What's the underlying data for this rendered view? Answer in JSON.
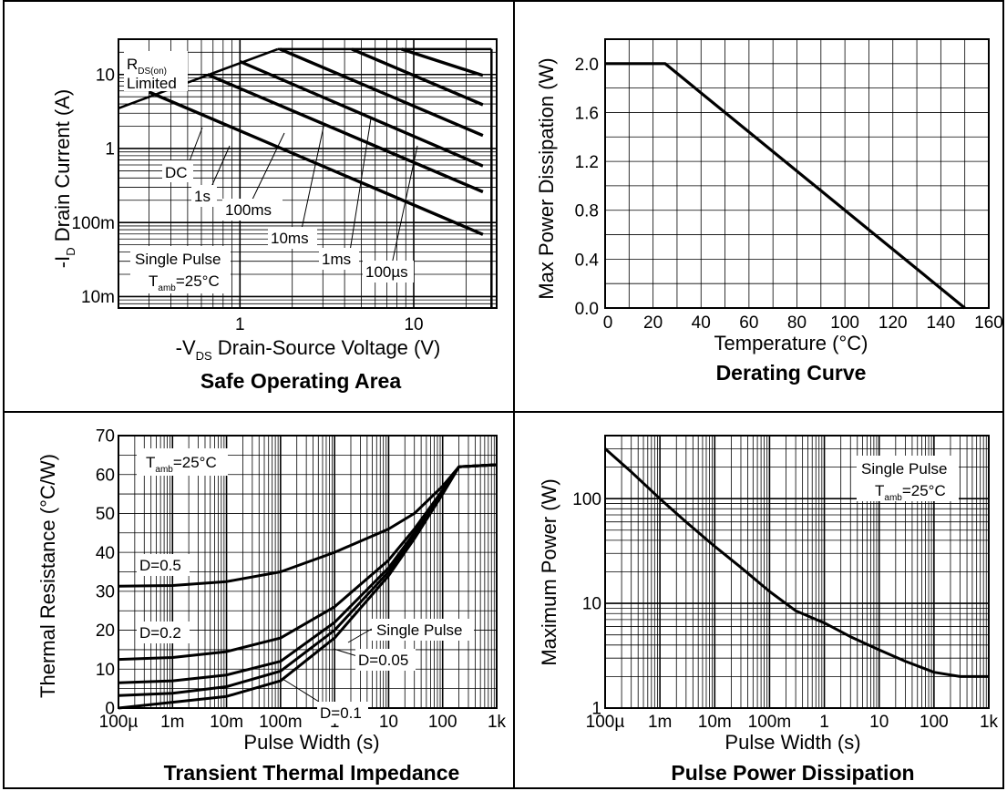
{
  "chart_data": [
    {
      "type": "line",
      "id": "soa",
      "title": "Safe Operating Area",
      "xlabel": "-V_DS  Drain-Source Voltage (V)",
      "ylabel": "-I_D  Drain Current (A)",
      "xscale": "log",
      "yscale": "log",
      "xlim": [
        0.2,
        30
      ],
      "ylim": [
        0.007,
        30
      ],
      "xticks": [
        {
          "v": 1,
          "label": "1"
        },
        {
          "v": 10,
          "label": "10"
        }
      ],
      "yticks": [
        {
          "v": 10,
          "label": "10"
        },
        {
          "v": 1,
          "label": "1"
        },
        {
          "v": 0.1,
          "label": "100m"
        },
        {
          "v": 0.01,
          "label": "10m"
        }
      ],
      "grid": true,
      "series": [
        {
          "name": "DC",
          "points": [
            [
              0.3,
              5.8
            ],
            [
              25,
              0.069
            ]
          ]
        },
        {
          "name": "1s",
          "points": [
            [
              0.65,
              10
            ],
            [
              25,
              0.26
            ]
          ]
        },
        {
          "name": "100ms",
          "points": [
            [
              1,
              15
            ],
            [
              25,
              0.58
            ]
          ]
        },
        {
          "name": "10ms",
          "points": [
            [
              1.7,
              22
            ],
            [
              25,
              1.5
            ]
          ]
        },
        {
          "name": "1ms",
          "points": [
            [
              4.4,
              22
            ],
            [
              25,
              3.9
            ]
          ]
        },
        {
          "name": "100µs",
          "points": [
            [
              8.5,
              22
            ],
            [
              25,
              9.7
            ]
          ]
        }
      ],
      "limit_lines": [
        {
          "name": "R_DS(on) Limited",
          "points": [
            [
              0.2,
              3.5
            ],
            [
              1.65,
              22
            ]
          ]
        },
        {
          "name": "current limit",
          "points": [
            [
              1.65,
              22
            ],
            [
              28,
              22
            ]
          ]
        },
        {
          "name": "voltage limit",
          "points": [
            [
              28,
              22
            ],
            [
              28,
              0.007
            ]
          ]
        }
      ],
      "annotations": {
        "rds_main": "R",
        "rds_sub": "DS(on)",
        "rds_limited": "Limited",
        "dc": "DC",
        "t1s": "1s",
        "t100ms": "100ms",
        "t10ms": "10ms",
        "t1ms": "1ms",
        "t100us": "100µs",
        "single_pulse": "Single Pulse",
        "tamb_main": "T",
        "tamb_sub": "amb",
        "tamb_val": "=25°C"
      },
      "xlabel_parts": {
        "pre": "-V",
        "sub": "DS",
        "post": "  Drain-Source Voltage (V)"
      },
      "ylabel_parts": {
        "pre": "-I",
        "sub": "D",
        "post": "  Drain Current (A)"
      }
    },
    {
      "type": "line",
      "id": "derating",
      "title": "Derating Curve",
      "xlabel": "Temperature (°C)",
      "ylabel": "Max Power Dissipation (W)",
      "xscale": "linear",
      "yscale": "linear",
      "xlim": [
        0,
        160
      ],
      "ylim": [
        0,
        2.2
      ],
      "xticks": [
        {
          "v": 0,
          "label": "0"
        },
        {
          "v": 20,
          "label": "20"
        },
        {
          "v": 40,
          "label": "40"
        },
        {
          "v": 60,
          "label": "60"
        },
        {
          "v": 80,
          "label": "80"
        },
        {
          "v": 100,
          "label": "100"
        },
        {
          "v": 120,
          "label": "120"
        },
        {
          "v": 140,
          "label": "140"
        },
        {
          "v": 160,
          "label": "160"
        }
      ],
      "yticks": [
        {
          "v": 0.0,
          "label": "0.0"
        },
        {
          "v": 0.4,
          "label": "0.4"
        },
        {
          "v": 0.8,
          "label": "0.8"
        },
        {
          "v": 1.2,
          "label": "1.2"
        },
        {
          "v": 1.6,
          "label": "1.6"
        },
        {
          "v": 2.0,
          "label": "2.0"
        }
      ],
      "grid": true,
      "series": [
        {
          "points": [
            [
              0,
              2.0
            ],
            [
              25,
              2.0
            ],
            [
              150,
              0.0
            ]
          ]
        }
      ]
    },
    {
      "type": "line",
      "id": "transient",
      "title": "Transient Thermal Impedance",
      "xlabel": "Pulse Width (s)",
      "ylabel": "Thermal Resistance (°C/W)",
      "xscale": "log",
      "yscale": "linear",
      "xlim": [
        0.0001,
        1000
      ],
      "ylim": [
        0,
        70
      ],
      "xticks": [
        {
          "v": 0.0001,
          "label": "100µ"
        },
        {
          "v": 0.001,
          "label": "1m"
        },
        {
          "v": 0.01,
          "label": "10m"
        },
        {
          "v": 0.1,
          "label": "100m"
        },
        {
          "v": 1,
          "label": "1"
        },
        {
          "v": 10,
          "label": "10"
        },
        {
          "v": 100,
          "label": "100"
        },
        {
          "v": 1000,
          "label": "1k"
        }
      ],
      "yticks": [
        {
          "v": 0,
          "label": "0"
        },
        {
          "v": 10,
          "label": "10"
        },
        {
          "v": 20,
          "label": "20"
        },
        {
          "v": 30,
          "label": "30"
        },
        {
          "v": 40,
          "label": "40"
        },
        {
          "v": 50,
          "label": "50"
        },
        {
          "v": 60,
          "label": "60"
        },
        {
          "v": 70,
          "label": "70"
        }
      ],
      "grid": true,
      "series": [
        {
          "name": "D=0.5",
          "points": [
            [
              0.0001,
              31.3
            ],
            [
              0.001,
              31.5
            ],
            [
              0.01,
              32.5
            ],
            [
              0.1,
              35
            ],
            [
              1,
              40
            ],
            [
              10,
              46
            ],
            [
              30,
              50
            ],
            [
              100,
              57
            ],
            [
              200,
              62
            ],
            [
              1000,
              62.5
            ]
          ]
        },
        {
          "name": "D=0.2",
          "points": [
            [
              0.0001,
              12.5
            ],
            [
              0.001,
              13
            ],
            [
              0.01,
              14.5
            ],
            [
              0.1,
              18
            ],
            [
              1,
              26
            ],
            [
              10,
              38
            ],
            [
              30,
              46
            ],
            [
              100,
              56
            ],
            [
              200,
              62
            ],
            [
              1000,
              62.5
            ]
          ]
        },
        {
          "name": "D=0.1",
          "points": [
            [
              0.0001,
              6.5
            ],
            [
              0.001,
              7
            ],
            [
              0.01,
              8.5
            ],
            [
              0.1,
              12
            ],
            [
              1,
              22
            ],
            [
              10,
              36
            ],
            [
              30,
              45
            ],
            [
              100,
              55.5
            ],
            [
              200,
              62
            ],
            [
              1000,
              62.5
            ]
          ]
        },
        {
          "name": "D=0.05",
          "points": [
            [
              0.0001,
              3.2
            ],
            [
              0.001,
              3.8
            ],
            [
              0.01,
              5.5
            ],
            [
              0.1,
              9.5
            ],
            [
              1,
              20
            ],
            [
              10,
              35
            ],
            [
              30,
              44
            ],
            [
              100,
              55
            ],
            [
              200,
              62
            ],
            [
              1000,
              62.5
            ]
          ]
        },
        {
          "name": "Single Pulse",
          "points": [
            [
              0.0001,
              0
            ],
            [
              0.001,
              1.5
            ],
            [
              0.01,
              3
            ],
            [
              0.1,
              7
            ],
            [
              1,
              18
            ],
            [
              10,
              34
            ],
            [
              30,
              43.5
            ],
            [
              100,
              55
            ],
            [
              200,
              62
            ],
            [
              1000,
              62.5
            ]
          ]
        }
      ],
      "annotations": {
        "tamb_main": "T",
        "tamb_sub": "amb",
        "tamb_val": "=25°C",
        "d05": "D=0.5",
        "d02": "D=0.2",
        "d01": "D=0.1",
        "d005": "D=0.05",
        "single_pulse": "Single Pulse"
      }
    },
    {
      "type": "line",
      "id": "pulsepower",
      "title": "Pulse Power Dissipation",
      "xlabel": "Pulse Width (s)",
      "ylabel": "Maximum Power (W)",
      "xscale": "log",
      "yscale": "log",
      "xlim": [
        0.0001,
        1000
      ],
      "ylim": [
        1,
        400
      ],
      "xticks": [
        {
          "v": 0.0001,
          "label": "100µ"
        },
        {
          "v": 0.001,
          "label": "1m"
        },
        {
          "v": 0.01,
          "label": "10m"
        },
        {
          "v": 0.1,
          "label": "100m"
        },
        {
          "v": 1,
          "label": "1"
        },
        {
          "v": 10,
          "label": "10"
        },
        {
          "v": 100,
          "label": "100"
        },
        {
          "v": 1000,
          "label": "1k"
        }
      ],
      "yticks": [
        {
          "v": 1,
          "label": "1"
        },
        {
          "v": 10,
          "label": "10"
        },
        {
          "v": 100,
          "label": "100"
        }
      ],
      "grid": true,
      "series": [
        {
          "name": "Single Pulse",
          "points": [
            [
              0.0001,
              300
            ],
            [
              0.0003,
              180
            ],
            [
              0.001,
              100
            ],
            [
              0.003,
              60
            ],
            [
              0.01,
              35
            ],
            [
              0.03,
              22
            ],
            [
              0.1,
              13
            ],
            [
              0.3,
              8.5
            ],
            [
              1,
              6.5
            ],
            [
              3,
              4.8
            ],
            [
              10,
              3.6
            ],
            [
              30,
              2.8
            ],
            [
              100,
              2.2
            ],
            [
              300,
              2.0
            ],
            [
              1000,
              2.0
            ]
          ]
        }
      ],
      "annotations": {
        "single_pulse": "Single Pulse",
        "tamb_main": "T",
        "tamb_sub": "amb",
        "tamb_val": "=25°C"
      }
    }
  ]
}
